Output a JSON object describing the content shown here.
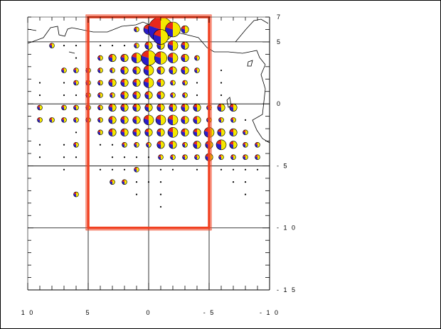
{
  "map": {
    "lon_min": -10,
    "lon_max": 10,
    "lat_min": -15,
    "lat_max": 7,
    "x_tick_labels": [
      "1 0",
      "5",
      "0",
      "- 5",
      "- 1 0"
    ],
    "y_tick_labels": [
      "7",
      "5",
      "0",
      "- 5",
      "- 1 0",
      "- 1 5"
    ],
    "colors": {
      "pie_yellow": "#f4e800",
      "pie_blue": "#2a1cc8",
      "pie_red": "#e8281c",
      "box": "#f04020"
    },
    "highlight_box": {
      "lon_west": 5,
      "lon_east": -5,
      "lat_north": 7,
      "lat_south": -10
    },
    "pie_markers": [
      {
        "lon": 8,
        "lat": 4.7,
        "size": 2
      },
      {
        "lon": 7,
        "lat": 4.7,
        "size": 1
      },
      {
        "lon": 6,
        "lat": 4.7,
        "size": 1
      },
      {
        "lon": 5,
        "lat": 4.7,
        "size": 1
      },
      {
        "lon": 4,
        "lat": 4.7,
        "size": 1
      },
      {
        "lon": 3,
        "lat": 4.7,
        "size": 1
      },
      {
        "lon": 2,
        "lat": 4.7,
        "size": 1
      },
      {
        "lon": 1,
        "lat": 4.7,
        "size": 2
      },
      {
        "lon": 0,
        "lat": 4.7,
        "size": 3
      },
      {
        "lon": -1,
        "lat": 4.7,
        "size": 3
      },
      {
        "lon": -2,
        "lat": 4.7,
        "size": 4
      },
      {
        "lon": -3,
        "lat": 4.7,
        "size": 3
      },
      {
        "lon": 0,
        "lat": 6.0,
        "size": 4
      },
      {
        "lon": -1,
        "lat": 6.0,
        "size": 10
      },
      {
        "lon": -2,
        "lat": 6.0,
        "size": 6
      },
      {
        "lon": -3,
        "lat": 6.0,
        "size": 3
      },
      {
        "lon": 1,
        "lat": 6.0,
        "size": 2
      },
      {
        "lon": -1,
        "lat": 5.4,
        "size": 6
      },
      {
        "lon": 6,
        "lat": 3.7,
        "size": 1
      },
      {
        "lon": 5,
        "lat": 3.7,
        "size": 1
      },
      {
        "lon": 4,
        "lat": 3.7,
        "size": 2
      },
      {
        "lon": 3,
        "lat": 3.7,
        "size": 3
      },
      {
        "lon": 2,
        "lat": 3.7,
        "size": 3
      },
      {
        "lon": 1,
        "lat": 3.7,
        "size": 4
      },
      {
        "lon": 0,
        "lat": 3.7,
        "size": 6
      },
      {
        "lon": -1,
        "lat": 3.7,
        "size": 5
      },
      {
        "lon": -2,
        "lat": 3.7,
        "size": 4
      },
      {
        "lon": -3,
        "lat": 3.7,
        "size": 3
      },
      {
        "lon": -4,
        "lat": 3.7,
        "size": 2
      },
      {
        "lon": 7,
        "lat": 2.7,
        "size": 2
      },
      {
        "lon": 6,
        "lat": 2.7,
        "size": 2
      },
      {
        "lon": 5,
        "lat": 2.7,
        "size": 2
      },
      {
        "lon": 4,
        "lat": 2.7,
        "size": 2
      },
      {
        "lon": 3,
        "lat": 2.7,
        "size": 2
      },
      {
        "lon": 2,
        "lat": 2.7,
        "size": 3
      },
      {
        "lon": 1,
        "lat": 2.7,
        "size": 3
      },
      {
        "lon": 0,
        "lat": 2.7,
        "size": 4
      },
      {
        "lon": -1,
        "lat": 2.7,
        "size": 3
      },
      {
        "lon": -2,
        "lat": 2.7,
        "size": 3
      },
      {
        "lon": -3,
        "lat": 2.7,
        "size": 3
      },
      {
        "lon": -4,
        "lat": 2.7,
        "size": 2
      },
      {
        "lon": -6,
        "lat": 2.7,
        "size": 1
      },
      {
        "lon": 9,
        "lat": 1.7,
        "size": 1
      },
      {
        "lon": 7,
        "lat": 1.7,
        "size": 1
      },
      {
        "lon": 6,
        "lat": 1.7,
        "size": 2
      },
      {
        "lon": 5,
        "lat": 1.7,
        "size": 2
      },
      {
        "lon": 4,
        "lat": 1.7,
        "size": 2
      },
      {
        "lon": 3,
        "lat": 1.7,
        "size": 3
      },
      {
        "lon": 2,
        "lat": 1.7,
        "size": 3
      },
      {
        "lon": 1,
        "lat": 1.7,
        "size": 3
      },
      {
        "lon": 0,
        "lat": 1.7,
        "size": 4
      },
      {
        "lon": -1,
        "lat": 1.7,
        "size": 3
      },
      {
        "lon": -2,
        "lat": 1.7,
        "size": 2
      },
      {
        "lon": -3,
        "lat": 1.7,
        "size": 2
      },
      {
        "lon": -4,
        "lat": 1.7,
        "size": 1
      },
      {
        "lon": -5,
        "lat": 1.7,
        "size": 1
      },
      {
        "lon": -6,
        "lat": 1.7,
        "size": 1
      },
      {
        "lon": 9,
        "lat": 0.7,
        "size": 1
      },
      {
        "lon": 7,
        "lat": 0.7,
        "size": 1
      },
      {
        "lon": 6,
        "lat": 0.7,
        "size": 1
      },
      {
        "lon": 5,
        "lat": 0.7,
        "size": 2
      },
      {
        "lon": 4,
        "lat": 0.7,
        "size": 2
      },
      {
        "lon": 3,
        "lat": 0.7,
        "size": 2
      },
      {
        "lon": 2,
        "lat": 0.7,
        "size": 3
      },
      {
        "lon": 1,
        "lat": 0.7,
        "size": 3
      },
      {
        "lon": 0,
        "lat": 0.7,
        "size": 3
      },
      {
        "lon": -1,
        "lat": 0.7,
        "size": 3
      },
      {
        "lon": -2,
        "lat": 0.7,
        "size": 2
      },
      {
        "lon": -3,
        "lat": 0.7,
        "size": 2
      },
      {
        "lon": -4,
        "lat": 0.7,
        "size": 1
      },
      {
        "lon": -6,
        "lat": 0.7,
        "size": 1
      },
      {
        "lon": 9,
        "lat": -0.3,
        "size": 2
      },
      {
        "lon": 7,
        "lat": -0.3,
        "size": 2
      },
      {
        "lon": 6,
        "lat": -0.3,
        "size": 2
      },
      {
        "lon": 5,
        "lat": -0.3,
        "size": 2
      },
      {
        "lon": 4,
        "lat": -0.3,
        "size": 2
      },
      {
        "lon": 3,
        "lat": -0.3,
        "size": 3
      },
      {
        "lon": 2,
        "lat": -0.3,
        "size": 3
      },
      {
        "lon": 1,
        "lat": -0.3,
        "size": 3
      },
      {
        "lon": 0,
        "lat": -0.3,
        "size": 3
      },
      {
        "lon": -1,
        "lat": -0.3,
        "size": 3
      },
      {
        "lon": -2,
        "lat": -0.3,
        "size": 3
      },
      {
        "lon": -3,
        "lat": -0.3,
        "size": 3
      },
      {
        "lon": -4,
        "lat": -0.3,
        "size": 3
      },
      {
        "lon": -5,
        "lat": -0.3,
        "size": 2
      },
      {
        "lon": -6,
        "lat": -0.3,
        "size": 3
      },
      {
        "lon": -7,
        "lat": -0.3,
        "size": 3
      },
      {
        "lon": 9,
        "lat": -1.3,
        "size": 2
      },
      {
        "lon": 8,
        "lat": -1.3,
        "size": 2
      },
      {
        "lon": 7,
        "lat": -1.3,
        "size": 2
      },
      {
        "lon": 6,
        "lat": -1.3,
        "size": 2
      },
      {
        "lon": 5,
        "lat": -1.3,
        "size": 2
      },
      {
        "lon": 4,
        "lat": -1.3,
        "size": 2
      },
      {
        "lon": 3,
        "lat": -1.3,
        "size": 3
      },
      {
        "lon": 2,
        "lat": -1.3,
        "size": 3
      },
      {
        "lon": 1,
        "lat": -1.3,
        "size": 3
      },
      {
        "lon": 0,
        "lat": -1.3,
        "size": 4
      },
      {
        "lon": -1,
        "lat": -1.3,
        "size": 4
      },
      {
        "lon": -2,
        "lat": -1.3,
        "size": 4
      },
      {
        "lon": -3,
        "lat": -1.3,
        "size": 3
      },
      {
        "lon": -4,
        "lat": -1.3,
        "size": 3
      },
      {
        "lon": -5,
        "lat": -1.3,
        "size": 2
      },
      {
        "lon": -6,
        "lat": -1.3,
        "size": 2
      },
      {
        "lon": -7,
        "lat": -1.3,
        "size": 2
      },
      {
        "lon": -8,
        "lat": -1.3,
        "size": 1
      },
      {
        "lon": 6,
        "lat": -2.3,
        "size": 1
      },
      {
        "lon": 5,
        "lat": -2.3,
        "size": 1
      },
      {
        "lon": 4,
        "lat": -2.3,
        "size": 2
      },
      {
        "lon": 3,
        "lat": -2.3,
        "size": 3
      },
      {
        "lon": 2,
        "lat": -2.3,
        "size": 3
      },
      {
        "lon": 1,
        "lat": -2.3,
        "size": 3
      },
      {
        "lon": 0,
        "lat": -2.3,
        "size": 3
      },
      {
        "lon": -1,
        "lat": -2.3,
        "size": 3
      },
      {
        "lon": -2,
        "lat": -2.3,
        "size": 4
      },
      {
        "lon": -3,
        "lat": -2.3,
        "size": 3
      },
      {
        "lon": -4,
        "lat": -2.3,
        "size": 3
      },
      {
        "lon": -5,
        "lat": -2.3,
        "size": 4
      },
      {
        "lon": -6,
        "lat": -2.3,
        "size": 3
      },
      {
        "lon": -7,
        "lat": -2.3,
        "size": 3
      },
      {
        "lon": -8,
        "lat": -2.3,
        "size": 2
      },
      {
        "lon": 9,
        "lat": -3.3,
        "size": 1
      },
      {
        "lon": 7,
        "lat": -3.3,
        "size": 1
      },
      {
        "lon": 6,
        "lat": -3.3,
        "size": 2
      },
      {
        "lon": 5,
        "lat": -3.3,
        "size": 1
      },
      {
        "lon": 4,
        "lat": -3.3,
        "size": 1
      },
      {
        "lon": 3,
        "lat": -3.3,
        "size": 1
      },
      {
        "lon": 2,
        "lat": -3.3,
        "size": 2
      },
      {
        "lon": 1,
        "lat": -3.3,
        "size": 2
      },
      {
        "lon": 0,
        "lat": -3.3,
        "size": 2
      },
      {
        "lon": -1,
        "lat": -3.3,
        "size": 3
      },
      {
        "lon": -2,
        "lat": -3.3,
        "size": 3
      },
      {
        "lon": -3,
        "lat": -3.3,
        "size": 2
      },
      {
        "lon": -4,
        "lat": -3.3,
        "size": 3
      },
      {
        "lon": -5,
        "lat": -3.3,
        "size": 3
      },
      {
        "lon": -6,
        "lat": -3.3,
        "size": 4
      },
      {
        "lon": -7,
        "lat": -3.3,
        "size": 3
      },
      {
        "lon": -8,
        "lat": -3.3,
        "size": 2
      },
      {
        "lon": -9,
        "lat": -3.3,
        "size": 2
      },
      {
        "lon": 9,
        "lat": -4.3,
        "size": 1
      },
      {
        "lon": 7,
        "lat": -4.3,
        "size": 1
      },
      {
        "lon": 6,
        "lat": -4.3,
        "size": 1
      },
      {
        "lon": 5,
        "lat": -4.3,
        "size": 1
      },
      {
        "lon": 3,
        "lat": -4.3,
        "size": 1
      },
      {
        "lon": 2,
        "lat": -4.3,
        "size": 1
      },
      {
        "lon": 1,
        "lat": -4.3,
        "size": 1
      },
      {
        "lon": 0,
        "lat": -4.3,
        "size": 1
      },
      {
        "lon": -1,
        "lat": -4.3,
        "size": 2
      },
      {
        "lon": -2,
        "lat": -4.3,
        "size": 2
      },
      {
        "lon": -3,
        "lat": -4.3,
        "size": 2
      },
      {
        "lon": -4,
        "lat": -4.3,
        "size": 2
      },
      {
        "lon": -5,
        "lat": -4.3,
        "size": 3
      },
      {
        "lon": -6,
        "lat": -4.3,
        "size": 2
      },
      {
        "lon": -7,
        "lat": -4.3,
        "size": 2
      },
      {
        "lon": -8,
        "lat": -4.3,
        "size": 2
      },
      {
        "lon": -9,
        "lat": -4.3,
        "size": 2
      },
      {
        "lon": 7,
        "lat": -5.3,
        "size": 1
      },
      {
        "lon": 4,
        "lat": -5.3,
        "size": 1
      },
      {
        "lon": 3,
        "lat": -5.3,
        "size": 1
      },
      {
        "lon": 2,
        "lat": -5.3,
        "size": 1
      },
      {
        "lon": 1,
        "lat": -5.3,
        "size": 2
      },
      {
        "lon": -1,
        "lat": -5.3,
        "size": 1
      },
      {
        "lon": -2,
        "lat": -5.3,
        "size": 1
      },
      {
        "lon": -4,
        "lat": -5.3,
        "size": 1
      },
      {
        "lon": -5,
        "lat": -5.3,
        "size": 1
      },
      {
        "lon": -6,
        "lat": -5.3,
        "size": 1
      },
      {
        "lon": -7,
        "lat": -5.3,
        "size": 1
      },
      {
        "lon": -8,
        "lat": -5.3,
        "size": 1
      },
      {
        "lon": -9,
        "lat": -5.3,
        "size": 1
      },
      {
        "lon": 5,
        "lat": -6.3,
        "size": 1
      },
      {
        "lon": 3,
        "lat": -6.3,
        "size": 2
      },
      {
        "lon": 2,
        "lat": -6.3,
        "size": 2
      },
      {
        "lon": 1,
        "lat": -6.3,
        "size": 1
      },
      {
        "lon": 0,
        "lat": -6.3,
        "size": 1
      },
      {
        "lon": -1,
        "lat": -6.3,
        "size": 1
      },
      {
        "lon": -5,
        "lat": -6.3,
        "size": 1
      },
      {
        "lon": -7,
        "lat": -6.3,
        "size": 1
      },
      {
        "lon": -8,
        "lat": -6.3,
        "size": 1
      },
      {
        "lon": 6,
        "lat": -7.3,
        "size": 2
      },
      {
        "lon": 1,
        "lat": -7.3,
        "size": 1
      },
      {
        "lon": -1,
        "lat": -7.3,
        "size": 1
      },
      {
        "lon": -8,
        "lat": -7.3,
        "size": 1
      },
      {
        "lon": -1,
        "lat": -8.3,
        "size": 1
      }
    ]
  }
}
